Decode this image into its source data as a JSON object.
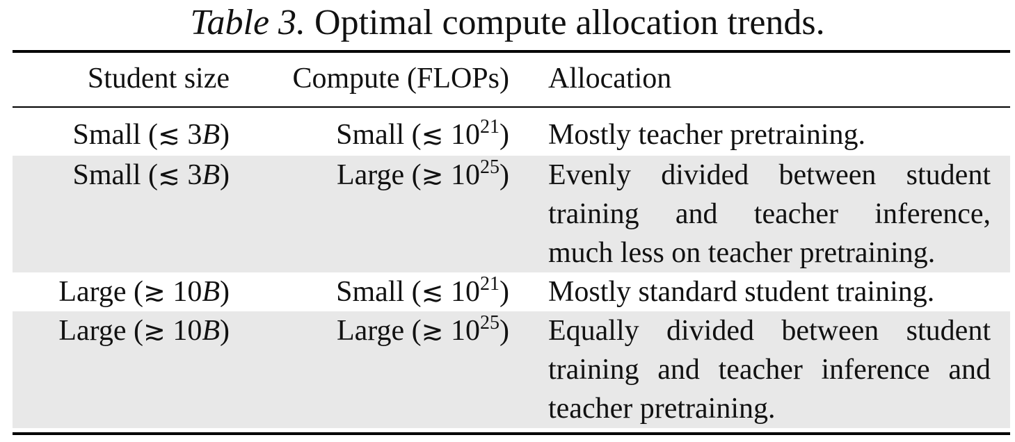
{
  "caption": {
    "label": "Table 3.",
    "text": "Optimal compute allocation trends."
  },
  "headers": {
    "student_size": "Student size",
    "compute": "Compute (FLOPs)",
    "allocation": "Allocation"
  },
  "rows": [
    {
      "student_word": "Small (",
      "student_sym": "≲",
      "student_num": " 3",
      "student_var": "B",
      "student_close": ")",
      "compute_word": "Small (",
      "compute_sym": "≲",
      "compute_base": " 10",
      "compute_exp": "21",
      "compute_close": ")",
      "allocation_lines": [
        "Mostly teacher pretraining."
      ]
    },
    {
      "student_word": "Small (",
      "student_sym": "≲",
      "student_num": " 3",
      "student_var": "B",
      "student_close": ")",
      "compute_word": "Large (",
      "compute_sym": "≳",
      "compute_base": " 10",
      "compute_exp": "25",
      "compute_close": ")",
      "allocation_lines": [
        "Evenly divided between student",
        "training and teacher inference,",
        "much less on teacher pretraining."
      ]
    },
    {
      "student_word": "Large (",
      "student_sym": "≳",
      "student_num": " 10",
      "student_var": "B",
      "student_close": ")",
      "compute_word": "Small (",
      "compute_sym": "≲",
      "compute_base": " 10",
      "compute_exp": "21",
      "compute_close": ")",
      "allocation_lines": [
        "Mostly standard student training."
      ]
    },
    {
      "student_word": "Large (",
      "student_sym": "≳",
      "student_num": " 10",
      "student_var": "B",
      "student_close": ")",
      "compute_word": "Large (",
      "compute_sym": "≳",
      "compute_base": " 10",
      "compute_exp": "25",
      "compute_close": ")",
      "allocation_lines": [
        "Equally divided between student",
        "training and teacher inference and",
        "teacher pretraining."
      ]
    }
  ]
}
